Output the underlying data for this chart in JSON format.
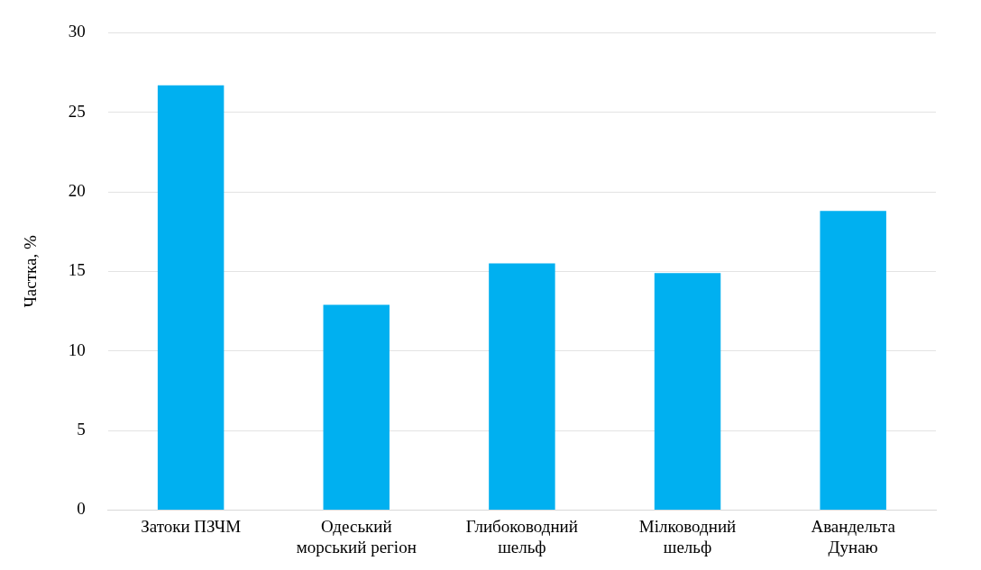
{
  "chart_data": {
    "type": "bar",
    "ylabel": "Частка, %",
    "categories": [
      "Затоки ПЗЧМ",
      "Одеський морський регіон",
      "Глибоководний шельф",
      "Мілководний шельф",
      "Авандельта Дунаю"
    ],
    "values": [
      26.7,
      12.9,
      15.5,
      14.9,
      18.8
    ],
    "color": "#00b0f0",
    "ylim": [
      0,
      30
    ],
    "yticks": [
      0,
      5,
      10,
      15,
      20,
      25,
      30
    ],
    "grid": "y"
  }
}
